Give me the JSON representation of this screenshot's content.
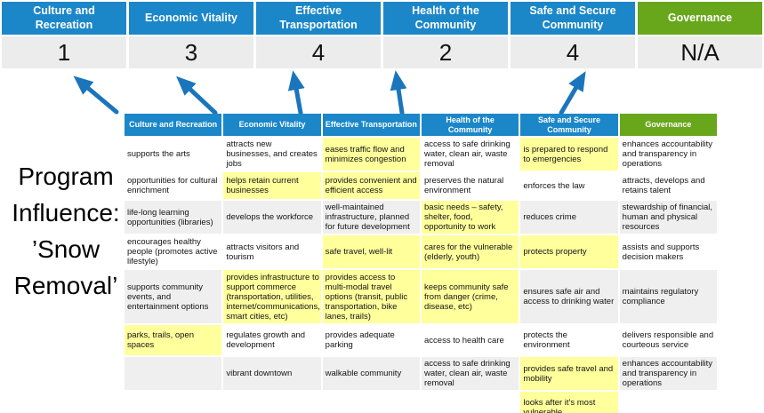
{
  "colors": {
    "header_blue": "#1B87C9",
    "governance_green": "#68A71B",
    "score_bg": "#ECECEC",
    "row_gray": "#EFEFEF",
    "highlight_yellow": "#FFFF9C",
    "arrow_blue": "#1B75BC"
  },
  "program_label": {
    "line1": "Program",
    "line2": "Influence:",
    "line3": "’Snow",
    "line4": "Removal’"
  },
  "scoreboard": {
    "columns": [
      {
        "label": "Culture and Recreation",
        "score": "1",
        "type": "blue"
      },
      {
        "label": "Economic Vitality",
        "score": "3",
        "type": "blue"
      },
      {
        "label": "Effective Transportation",
        "score": "4",
        "type": "blue"
      },
      {
        "label": "Health of the Community",
        "score": "2",
        "type": "blue"
      },
      {
        "label": "Safe and Secure Community",
        "score": "4",
        "type": "blue"
      },
      {
        "label": "Governance",
        "score": "N/A",
        "type": "green"
      }
    ]
  },
  "arrows": {
    "count": 5,
    "meaning": "table columns map up to scores"
  },
  "matrix": {
    "headers": [
      "Culture and Recreation",
      "Economic Vitality",
      "Effective Transportation",
      "Health of the Community",
      "Safe and Secure Community",
      "Governance"
    ],
    "rows": [
      {
        "band": "white",
        "cells": [
          {
            "text": "supports the arts",
            "hl": false
          },
          {
            "text": "attracts new businesses, and creates jobs",
            "hl": false
          },
          {
            "text": "eases traffic flow and minimizes congestion",
            "hl": true
          },
          {
            "text": "access to safe drinking water, clean air, waste removal",
            "hl": false
          },
          {
            "text": "is prepared to respond to emergencies",
            "hl": true
          },
          {
            "text": "enhances accountability and transparency in operations",
            "hl": false
          }
        ]
      },
      {
        "band": "white",
        "cells": [
          {
            "text": "opportunities for cultural enrichment",
            "hl": false
          },
          {
            "text": "helps retain current businesses",
            "hl": true
          },
          {
            "text": "provides convenient and efficient access",
            "hl": true
          },
          {
            "text": "preserves the natural environment",
            "hl": false
          },
          {
            "text": "enforces the law",
            "hl": false
          },
          {
            "text": "attracts, develops and retains talent",
            "hl": false
          }
        ]
      },
      {
        "band": "gray",
        "cells": [
          {
            "text": "life-long learning opportunities (libraries)",
            "hl": false
          },
          {
            "text": "develops the workforce",
            "hl": false
          },
          {
            "text": "well-maintained infrastructure, planned for future development",
            "hl": false
          },
          {
            "text": "basic needs – safety, shelter, food, opportunity to work",
            "hl": true
          },
          {
            "text": "reduces crime",
            "hl": false
          },
          {
            "text": "stewardship of financial, human and physical resources",
            "hl": false
          }
        ]
      },
      {
        "band": "white",
        "cells": [
          {
            "text": "encourages healthy people (promotes active lifestyle)",
            "hl": false
          },
          {
            "text": "attracts visitors and tourism",
            "hl": false
          },
          {
            "text": "safe travel, well-lit",
            "hl": true
          },
          {
            "text": "cares for the vulnerable (elderly, youth)",
            "hl": true
          },
          {
            "text": "protects property",
            "hl": true
          },
          {
            "text": "assists and supports decision makers",
            "hl": false
          }
        ]
      },
      {
        "band": "gray",
        "cells": [
          {
            "text": "supports community events, and entertainment options",
            "hl": false
          },
          {
            "text": "provides infrastructure to support commerce (transportation, utilities, internet/communications, smart cities, etc)",
            "hl": true
          },
          {
            "text": "provides access to multi-modal travel options (transit, public transportation, bike lanes, trails)",
            "hl": true
          },
          {
            "text": "keeps community safe from danger (crime, disease, etc)",
            "hl": true
          },
          {
            "text": "ensures safe air and access to drinking water",
            "hl": false
          },
          {
            "text": "maintains regulatory compliance",
            "hl": false
          }
        ]
      },
      {
        "band": "white",
        "cells": [
          {
            "text": "parks, trails, open spaces",
            "hl": true
          },
          {
            "text": "regulates growth and development",
            "hl": false
          },
          {
            "text": "provides adequate parking",
            "hl": false
          },
          {
            "text": "access to health care",
            "hl": false
          },
          {
            "text": "protects the environment",
            "hl": false
          },
          {
            "text": "delivers responsible and courteous service",
            "hl": false
          }
        ]
      },
      {
        "band": "gray",
        "cells": [
          {
            "text": "",
            "hl": false
          },
          {
            "text": "vibrant downtown",
            "hl": false
          },
          {
            "text": "walkable community",
            "hl": false
          },
          {
            "text": "access to safe drinking water, clean air, waste removal",
            "hl": false
          },
          {
            "text": "provides safe travel and mobility",
            "hl": true
          },
          {
            "text": "enhances accountability and transparency in operations",
            "hl": false
          }
        ]
      },
      {
        "band": "white",
        "cells": [
          {
            "text": "",
            "hl": false
          },
          {
            "text": "",
            "hl": false
          },
          {
            "text": "",
            "hl": false
          },
          {
            "text": "",
            "hl": false
          },
          {
            "text": "looks after it's most vulnerable",
            "hl": true
          },
          {
            "text": "",
            "hl": false
          }
        ]
      }
    ]
  }
}
